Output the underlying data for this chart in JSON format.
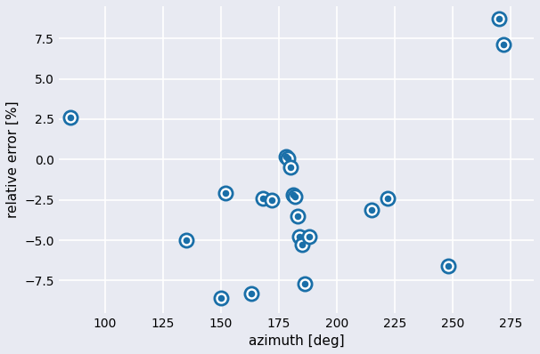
{
  "points": [
    [
      85,
      2.6
    ],
    [
      135,
      -5.0
    ],
    [
      150,
      -8.6
    ],
    [
      152,
      -2.1
    ],
    [
      163,
      -8.3
    ],
    [
      168,
      -2.4
    ],
    [
      172,
      -2.5
    ],
    [
      178,
      0.2
    ],
    [
      179,
      0.05
    ],
    [
      180,
      -0.5
    ],
    [
      181,
      -2.2
    ],
    [
      182,
      -2.3
    ],
    [
      183,
      -3.5
    ],
    [
      184,
      -4.8
    ],
    [
      185,
      -5.3
    ],
    [
      186,
      -7.7
    ],
    [
      188,
      -4.8
    ],
    [
      215,
      -3.1
    ],
    [
      222,
      -2.4
    ],
    [
      248,
      -6.6
    ],
    [
      270,
      8.7
    ],
    [
      272,
      7.1
    ]
  ],
  "xlabel": "azimuth [deg]",
  "ylabel": "relative error [%]",
  "xlim": [
    80,
    285
  ],
  "ylim": [
    -9.5,
    9.5
  ],
  "bg_color": "#e8eaf2",
  "marker_facecolor": "#1a6fa8",
  "marker_edgecolor": "#1a6fa8",
  "marker_size_outer": 120,
  "marker_size_inner": 30,
  "grid_color": "white",
  "xticks": [
    100,
    125,
    150,
    175,
    200,
    225,
    250,
    275
  ],
  "yticks": [
    -7.5,
    -5.0,
    -2.5,
    0.0,
    2.5,
    5.0,
    7.5
  ]
}
